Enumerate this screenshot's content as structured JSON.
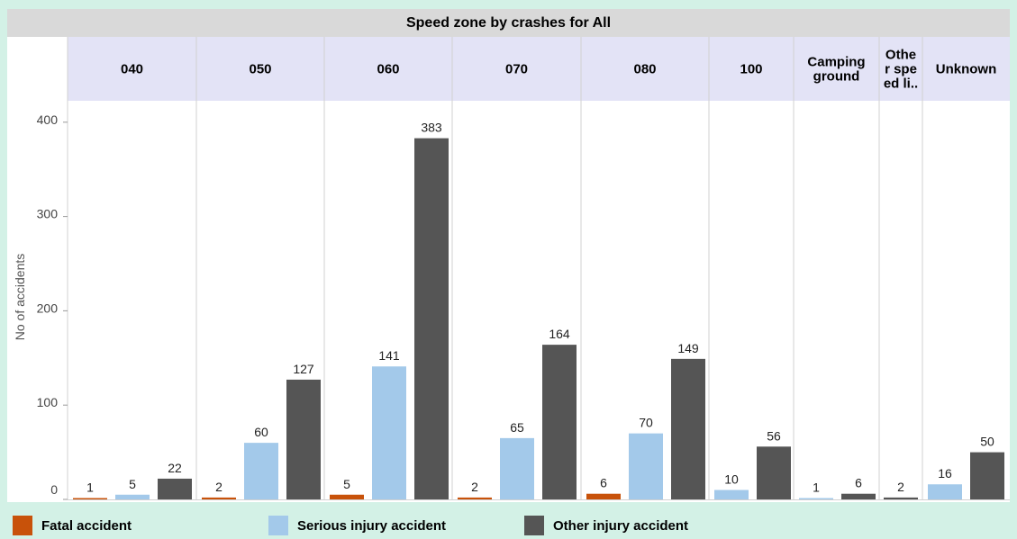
{
  "chart_data": {
    "type": "bar",
    "title": "Speed zone by crashes for All",
    "ylabel": "No of accidents",
    "xlabel": "",
    "ylim": [
      0,
      420
    ],
    "yticks": [
      0,
      100,
      200,
      300,
      400
    ],
    "categories": [
      "040",
      "050",
      "060",
      "070",
      "080",
      "100",
      "Camping ground",
      "Other speed li..",
      "Unknown"
    ],
    "category_labels": [
      [
        "040"
      ],
      [
        "050"
      ],
      [
        "060"
      ],
      [
        "070"
      ],
      [
        "080"
      ],
      [
        "100"
      ],
      [
        "Camping",
        "ground"
      ],
      [
        "Othe",
        "r spe",
        "ed li.."
      ],
      [
        "Unknown"
      ]
    ],
    "panels": [
      {
        "category": "040",
        "bars": [
          {
            "series": "Fatal accident",
            "value": 1
          },
          {
            "series": "Serious injury accident",
            "value": 5
          },
          {
            "series": "Other injury accident",
            "value": 22
          }
        ]
      },
      {
        "category": "050",
        "bars": [
          {
            "series": "Fatal accident",
            "value": 2
          },
          {
            "series": "Serious injury accident",
            "value": 60
          },
          {
            "series": "Other injury accident",
            "value": 127
          }
        ]
      },
      {
        "category": "060",
        "bars": [
          {
            "series": "Fatal accident",
            "value": 5
          },
          {
            "series": "Serious injury accident",
            "value": 141
          },
          {
            "series": "Other injury accident",
            "value": 383
          }
        ]
      },
      {
        "category": "070",
        "bars": [
          {
            "series": "Fatal accident",
            "value": 2
          },
          {
            "series": "Serious injury accident",
            "value": 65
          },
          {
            "series": "Other injury accident",
            "value": 164
          }
        ]
      },
      {
        "category": "080",
        "bars": [
          {
            "series": "Fatal accident",
            "value": 6
          },
          {
            "series": "Serious injury accident",
            "value": 70
          },
          {
            "series": "Other injury accident",
            "value": 149
          }
        ]
      },
      {
        "category": "100",
        "bars": [
          {
            "series": "Serious injury accident",
            "value": 10
          },
          {
            "series": "Other injury accident",
            "value": 56
          }
        ]
      },
      {
        "category": "Camping ground",
        "bars": [
          {
            "series": "Serious injury accident",
            "value": 1
          },
          {
            "series": "Other injury accident",
            "value": 6
          }
        ]
      },
      {
        "category": "Other speed li..",
        "bars": [
          {
            "series": "Other injury accident",
            "value": 2
          }
        ]
      },
      {
        "category": "Unknown",
        "bars": [
          {
            "series": "Serious injury accident",
            "value": 16
          },
          {
            "series": "Other injury accident",
            "value": 50
          }
        ]
      }
    ],
    "series": [
      {
        "name": "Fatal accident",
        "color": "#c8520a"
      },
      {
        "name": "Serious injury accident",
        "color": "#a3c9ea"
      },
      {
        "name": "Other injury accident",
        "color": "#555555"
      }
    ],
    "legend_position": "bottom",
    "grid": false
  },
  "colors": {
    "background": "#d3f1e6",
    "header_band": "#e3e3f6",
    "title_band": "#d9d9d9"
  }
}
